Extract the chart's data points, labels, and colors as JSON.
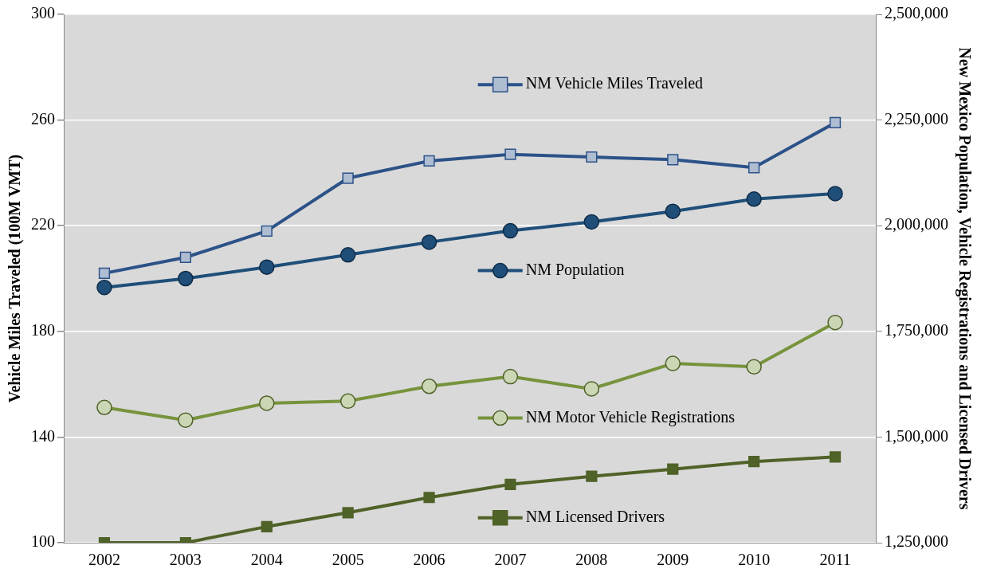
{
  "chart_data": {
    "type": "line",
    "ylabel": "Vehicle Miles Traveled (100M VMT)",
    "y2label": "New Mexico Population, Vehicle Registrations and Licensed Drivers",
    "categories": [
      "2002",
      "2003",
      "2004",
      "2005",
      "2006",
      "2007",
      "2008",
      "2009",
      "2010",
      "2011"
    ],
    "series": [
      {
        "name": "NM Vehicle Miles Traveled",
        "color": "#2c5288",
        "marker": "square",
        "values": [
          202,
          208,
          218,
          238,
          244.5,
          247,
          246,
          245,
          242,
          259
        ]
      },
      {
        "name": "NM Population",
        "color": "#1f4e79",
        "marker": "circle",
        "axis": "y2",
        "values": [
          1854000,
          1875000,
          1902000,
          1931000,
          1961000,
          1988000,
          2009000,
          2034000,
          2063000,
          2076000
        ]
      },
      {
        "name": "NM Motor Vehicle Registrations",
        "color": "#77933c",
        "marker": "circle",
        "axis": "y2",
        "values": [
          1570000,
          1540000,
          1580000,
          1585000,
          1620000,
          1643000,
          1614000,
          1674000,
          1666000,
          1771000
        ]
      },
      {
        "name": "NM Licensed Drivers",
        "color": "#4f6228",
        "marker": "square",
        "axis": "y2",
        "values": [
          1250000,
          1250000,
          1288000,
          1321000,
          1357000,
          1388000,
          1407000,
          1424000,
          1442000,
          1453000
        ]
      }
    ],
    "ylim": [
      100,
      300
    ],
    "yticks": [
      100,
      140,
      180,
      220,
      260,
      300
    ],
    "y2lim": [
      1250000,
      2500000
    ],
    "y2ticks": [
      {
        "value": 1250000,
        "label": "1,250,000"
      },
      {
        "value": 1500000,
        "label": "1,500,000"
      },
      {
        "value": 1750000,
        "label": "1,750,000"
      },
      {
        "value": 2000000,
        "label": "2,000,000"
      },
      {
        "value": 2250000,
        "label": "2,250,000"
      },
      {
        "value": 2500000,
        "label": "2,500,000"
      }
    ],
    "grid": "y",
    "line_style": "solid",
    "legend": "right"
  }
}
